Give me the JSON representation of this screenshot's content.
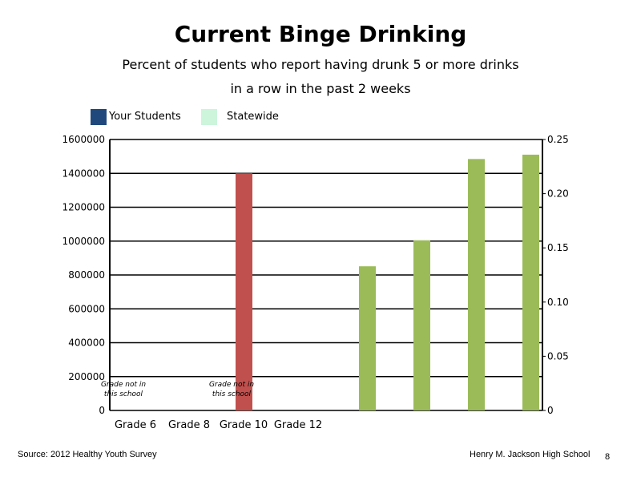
{
  "header": {
    "title": "Current Binge Drinking",
    "subtitle_line1": "Percent of students who report having drunk 5 or more drinks",
    "subtitle_line2": "in a row in the past 2 weeks"
  },
  "legend": [
    {
      "label": "Your Students",
      "color": "#1f497d"
    },
    {
      "label": "Statewide",
      "color": "#ccf5dc"
    }
  ],
  "chart_data": {
    "type": "bar",
    "categories": [
      "Grade 6",
      "Grade 8",
      "Grade 10",
      "Grade 12"
    ],
    "left_axis": {
      "ylim": [
        0,
        1600000
      ],
      "ticks": [
        "0",
        "200000",
        "400000",
        "600000",
        "800000",
        "1000000",
        "1200000",
        "1400000",
        "1600000"
      ]
    },
    "right_axis": {
      "ylim": [
        0,
        0.25
      ],
      "ticks": [
        "0",
        "0.05",
        "0.10",
        "0.15",
        "0.20",
        "0.25"
      ]
    },
    "series": [
      {
        "axis": "left",
        "color": "#c0504d",
        "values": [
          null,
          null,
          1400000,
          null
        ]
      },
      {
        "axis": "right",
        "color": "#9bbb59",
        "values": [
          0.133,
          0.157,
          0.232,
          0.236
        ]
      }
    ],
    "annotations": [
      {
        "category": "Grade 6",
        "line1": "Grade not in",
        "line2": "this school"
      },
      {
        "category": "Grade 10",
        "line1": "Grade not in",
        "line2": "this school"
      }
    ],
    "grid": true,
    "legend_position": "top-left"
  },
  "footer": {
    "source": "Source: 2012 Healthy Youth Survey",
    "school": "Henry M.  Jackson High School",
    "page": "8"
  }
}
